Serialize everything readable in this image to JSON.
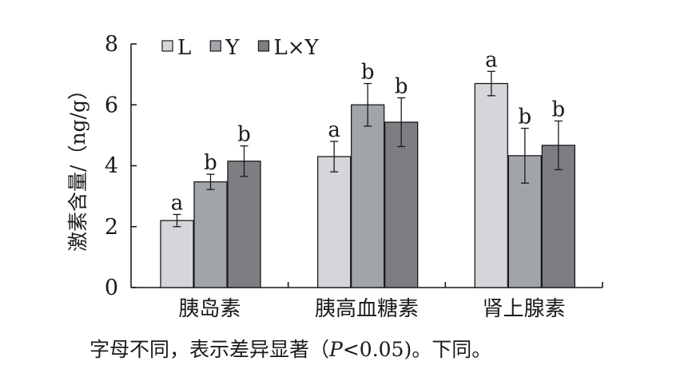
{
  "chart_data": {
    "type": "bar",
    "title": "",
    "xlabel": "",
    "ylabel": "激素含量/（ng/g）",
    "ylim": [
      0,
      8
    ],
    "yticks": [
      0,
      2,
      4,
      6,
      8
    ],
    "grid": false,
    "legend_position": "top-left",
    "categories": [
      "胰岛素",
      "胰高血糖素",
      "肾上腺素"
    ],
    "series": [
      {
        "name": "L",
        "color": "#d4d6d9",
        "values": [
          2.2,
          4.3,
          6.7
        ],
        "errors": [
          0.2,
          0.5,
          0.4
        ],
        "labels": [
          "a",
          "a",
          "a"
        ]
      },
      {
        "name": "Y",
        "color": "#a1a4a8",
        "values": [
          3.47,
          6.0,
          4.33
        ],
        "errors": [
          0.25,
          0.7,
          0.9
        ],
        "labels": [
          "b",
          "b",
          "b"
        ]
      },
      {
        "name": "L×Y",
        "color": "#7c7e82",
        "values": [
          4.15,
          5.43,
          4.67
        ],
        "errors": [
          0.5,
          0.8,
          0.8
        ],
        "labels": [
          "b",
          "b",
          "b"
        ]
      }
    ]
  },
  "footnote": {
    "before": "字母不同，表示差异显著（",
    "p_symbol": "P",
    "after": "<0.05)。下同。"
  }
}
